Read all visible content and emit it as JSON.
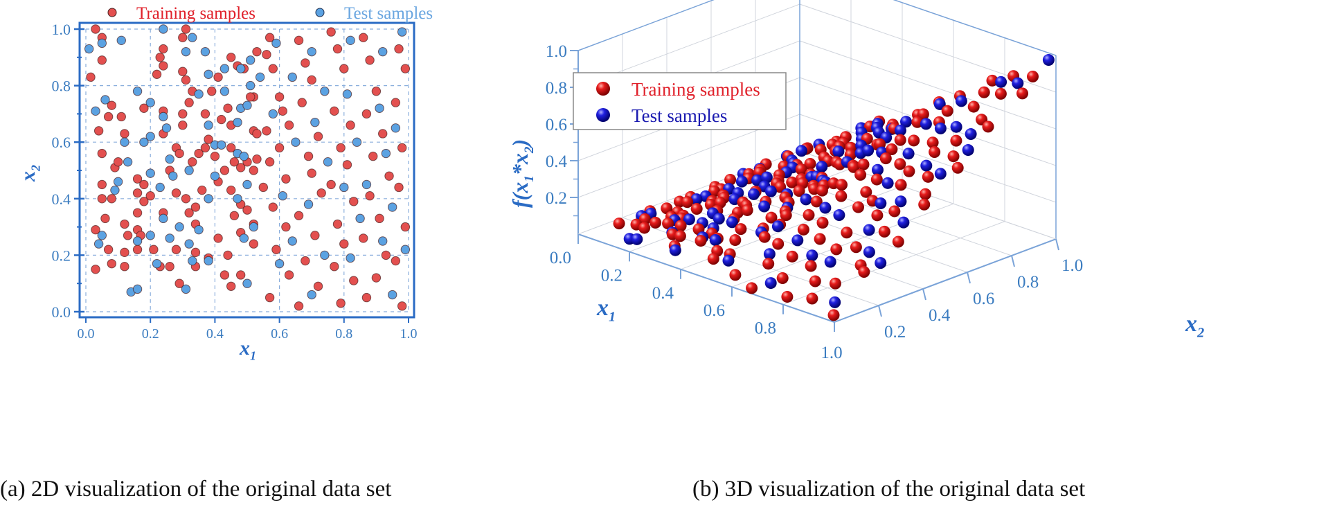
{
  "colors": {
    "axis": "#2a6bc4",
    "tick_label": "#3b7cc0",
    "training": "#e3504f",
    "test_2d": "#5ba2e2",
    "test_3d": "#1a1ad0",
    "training_text": "#e0202a",
    "test_text_2d": "#6aa6e0",
    "test_text_3d": "#1a1ab0",
    "grid": "#8aaedc"
  },
  "captions": {
    "a": "(a) 2D visualization of the original data set",
    "b": "(b) 3D visualization of the original data set"
  },
  "chart_data": [
    {
      "type": "scatter",
      "panel": "2D",
      "xlabel": "x1",
      "ylabel": "x2",
      "xlim": [
        0,
        1
      ],
      "ylim": [
        0,
        1
      ],
      "xticks": [
        "0.0",
        "0.2",
        "0.4",
        "0.6",
        "0.8",
        "1.0"
      ],
      "yticks": [
        "0.0",
        "0.2",
        "0.4",
        "0.6",
        "0.8",
        "1.0"
      ],
      "grid": true,
      "legend_position": "top-outside",
      "series": [
        {
          "name": "Training samples",
          "points": [
            [
              0.03,
              1.0
            ],
            [
              0.05,
              0.97
            ],
            [
              0.05,
              0.89
            ],
            [
              0.015,
              0.83
            ],
            [
              0.08,
              0.73
            ],
            [
              0.07,
              0.69
            ],
            [
              0.11,
              0.69
            ],
            [
              0.04,
              0.64
            ],
            [
              0.12,
              0.63
            ],
            [
              0.05,
              0.56
            ],
            [
              0.09,
              0.51
            ],
            [
              0.1,
              0.53
            ],
            [
              0.05,
              0.45
            ],
            [
              0.05,
              0.4
            ],
            [
              0.08,
              0.4
            ],
            [
              0.06,
              0.33
            ],
            [
              0.12,
              0.31
            ],
            [
              0.03,
              0.29
            ],
            [
              0.13,
              0.27
            ],
            [
              0.07,
              0.22
            ],
            [
              0.12,
              0.21
            ],
            [
              0.08,
              0.17
            ],
            [
              0.12,
              0.16
            ],
            [
              0.03,
              0.15
            ],
            [
              0.23,
              0.9
            ],
            [
              0.24,
              0.93
            ],
            [
              0.24,
              0.87
            ],
            [
              0.22,
              0.84
            ],
            [
              0.18,
              0.72
            ],
            [
              0.24,
              0.71
            ],
            [
              0.24,
              0.63
            ],
            [
              0.16,
              0.47
            ],
            [
              0.18,
              0.45
            ],
            [
              0.16,
              0.42
            ],
            [
              0.2,
              0.41
            ],
            [
              0.18,
              0.39
            ],
            [
              0.16,
              0.35
            ],
            [
              0.16,
              0.29
            ],
            [
              0.17,
              0.27
            ],
            [
              0.16,
              0.22
            ],
            [
              0.21,
              0.22
            ],
            [
              0.23,
              0.16
            ],
            [
              0.3,
              0.97
            ],
            [
              0.31,
              1.0
            ],
            [
              0.3,
              0.85
            ],
            [
              0.31,
              0.82
            ],
            [
              0.33,
              0.78
            ],
            [
              0.3,
              0.7
            ],
            [
              0.3,
              0.66
            ],
            [
              0.32,
              0.74
            ],
            [
              0.28,
              0.58
            ],
            [
              0.29,
              0.56
            ],
            [
              0.26,
              0.5
            ],
            [
              0.33,
              0.53
            ],
            [
              0.35,
              0.56
            ],
            [
              0.37,
              0.58
            ],
            [
              0.38,
              0.61
            ],
            [
              0.37,
              0.7
            ],
            [
              0.39,
              0.78
            ],
            [
              0.28,
              0.42
            ],
            [
              0.31,
              0.4
            ],
            [
              0.24,
              0.35
            ],
            [
              0.32,
              0.35
            ],
            [
              0.34,
              0.37
            ],
            [
              0.36,
              0.43
            ],
            [
              0.34,
              0.31
            ],
            [
              0.28,
              0.22
            ],
            [
              0.34,
              0.21
            ],
            [
              0.34,
              0.16
            ],
            [
              0.26,
              0.16
            ],
            [
              0.38,
              0.19
            ],
            [
              0.4,
              0.55
            ],
            [
              0.41,
              0.46
            ],
            [
              0.43,
              0.5
            ],
            [
              0.41,
              0.83
            ],
            [
              0.45,
              0.9
            ],
            [
              0.42,
              0.68
            ],
            [
              0.44,
              0.72
            ],
            [
              0.45,
              0.66
            ],
            [
              0.45,
              0.58
            ],
            [
              0.46,
              0.53
            ],
            [
              0.48,
              0.51
            ],
            [
              0.46,
              0.34
            ],
            [
              0.45,
              0.43
            ],
            [
              0.48,
              0.38
            ],
            [
              0.5,
              0.36
            ],
            [
              0.48,
              0.28
            ],
            [
              0.52,
              0.24
            ],
            [
              0.52,
              0.31
            ],
            [
              0.52,
              0.76
            ],
            [
              0.51,
              0.76
            ],
            [
              0.53,
              0.92
            ],
            [
              0.49,
              0.86
            ],
            [
              0.47,
              0.87
            ],
            [
              0.52,
              0.64
            ],
            [
              0.53,
              0.63
            ],
            [
              0.5,
              0.53
            ],
            [
              0.53,
              0.54
            ],
            [
              0.52,
              0.5
            ],
            [
              0.41,
              0.26
            ],
            [
              0.44,
              0.2
            ],
            [
              0.43,
              0.13
            ],
            [
              0.48,
              0.13
            ],
            [
              0.45,
              0.09
            ],
            [
              0.29,
              0.1
            ],
            [
              0.57,
              0.97
            ],
            [
              0.56,
              0.91
            ],
            [
              0.58,
              0.86
            ],
            [
              0.6,
              0.76
            ],
            [
              0.61,
              0.71
            ],
            [
              0.63,
              0.66
            ],
            [
              0.56,
              0.64
            ],
            [
              0.6,
              0.58
            ],
            [
              0.57,
              0.53
            ],
            [
              0.62,
              0.47
            ],
            [
              0.55,
              0.44
            ],
            [
              0.58,
              0.37
            ],
            [
              0.62,
              0.3
            ],
            [
              0.59,
              0.22
            ],
            [
              0.63,
              0.13
            ],
            [
              0.57,
              0.05
            ],
            [
              0.66,
              0.96
            ],
            [
              0.68,
              0.88
            ],
            [
              0.7,
              0.82
            ],
            [
              0.67,
              0.74
            ],
            [
              0.72,
              0.62
            ],
            [
              0.69,
              0.55
            ],
            [
              0.7,
              0.49
            ],
            [
              0.73,
              0.42
            ],
            [
              0.66,
              0.34
            ],
            [
              0.71,
              0.27
            ],
            [
              0.68,
              0.18
            ],
            [
              0.72,
              0.09
            ],
            [
              0.66,
              0.02
            ],
            [
              0.76,
              0.99
            ],
            [
              0.78,
              0.93
            ],
            [
              0.8,
              0.86
            ],
            [
              0.77,
              0.71
            ],
            [
              0.82,
              0.66
            ],
            [
              0.79,
              0.58
            ],
            [
              0.81,
              0.52
            ],
            [
              0.76,
              0.45
            ],
            [
              0.83,
              0.39
            ],
            [
              0.78,
              0.31
            ],
            [
              0.8,
              0.24
            ],
            [
              0.77,
              0.16
            ],
            [
              0.83,
              0.11
            ],
            [
              0.79,
              0.03
            ],
            [
              0.86,
              0.97
            ],
            [
              0.88,
              0.89
            ],
            [
              0.9,
              0.78
            ],
            [
              0.87,
              0.7
            ],
            [
              0.92,
              0.63
            ],
            [
              0.89,
              0.55
            ],
            [
              0.94,
              0.48
            ],
            [
              0.88,
              0.41
            ],
            [
              0.91,
              0.33
            ],
            [
              0.86,
              0.26
            ],
            [
              0.93,
              0.2
            ],
            [
              0.9,
              0.12
            ],
            [
              0.87,
              0.05
            ],
            [
              0.97,
              0.93
            ],
            [
              0.99,
              0.86
            ],
            [
              0.96,
              0.74
            ],
            [
              0.98,
              0.58
            ],
            [
              0.97,
              0.44
            ],
            [
              0.99,
              0.3
            ],
            [
              0.96,
              0.18
            ],
            [
              0.98,
              0.02
            ]
          ]
        },
        {
          "name": "Test samples",
          "points": [
            [
              0.01,
              0.93
            ],
            [
              0.05,
              0.95
            ],
            [
              0.11,
              0.96
            ],
            [
              0.03,
              0.71
            ],
            [
              0.06,
              0.75
            ],
            [
              0.16,
              0.78
            ],
            [
              0.2,
              0.74
            ],
            [
              0.24,
              0.69
            ],
            [
              0.25,
              0.65
            ],
            [
              0.18,
              0.6
            ],
            [
              0.2,
              0.62
            ],
            [
              0.12,
              0.6
            ],
            [
              0.13,
              0.53
            ],
            [
              0.1,
              0.46
            ],
            [
              0.09,
              0.43
            ],
            [
              0.2,
              0.49
            ],
            [
              0.23,
              0.44
            ],
            [
              0.27,
              0.48
            ],
            [
              0.26,
              0.54
            ],
            [
              0.31,
              0.92
            ],
            [
              0.33,
              0.97
            ],
            [
              0.24,
              1.0
            ],
            [
              0.37,
              0.92
            ],
            [
              0.35,
              0.77
            ],
            [
              0.38,
              0.84
            ],
            [
              0.38,
              0.66
            ],
            [
              0.32,
              0.5
            ],
            [
              0.4,
              0.48
            ],
            [
              0.38,
              0.4
            ],
            [
              0.4,
              0.59
            ],
            [
              0.42,
              0.59
            ],
            [
              0.43,
              0.86
            ],
            [
              0.43,
              0.78
            ],
            [
              0.48,
              0.86
            ],
            [
              0.47,
              0.67
            ],
            [
              0.48,
              0.72
            ],
            [
              0.5,
              0.73
            ],
            [
              0.51,
              0.8
            ],
            [
              0.51,
              0.89
            ],
            [
              0.54,
              0.83
            ],
            [
              0.47,
              0.56
            ],
            [
              0.49,
              0.55
            ],
            [
              0.5,
              0.45
            ],
            [
              0.47,
              0.4
            ],
            [
              0.52,
              0.3
            ],
            [
              0.49,
              0.26
            ],
            [
              0.5,
              0.1
            ],
            [
              0.2,
              0.27
            ],
            [
              0.16,
              0.25
            ],
            [
              0.04,
              0.24
            ],
            [
              0.05,
              0.27
            ],
            [
              0.24,
              0.33
            ],
            [
              0.29,
              0.3
            ],
            [
              0.35,
              0.29
            ],
            [
              0.32,
              0.24
            ],
            [
              0.26,
              0.26
            ],
            [
              0.22,
              0.17
            ],
            [
              0.33,
              0.18
            ],
            [
              0.38,
              0.18
            ],
            [
              0.14,
              0.07
            ],
            [
              0.16,
              0.08
            ],
            [
              0.31,
              0.08
            ],
            [
              0.59,
              0.95
            ],
            [
              0.64,
              0.83
            ],
            [
              0.58,
              0.7
            ],
            [
              0.65,
              0.6
            ],
            [
              0.61,
              0.41
            ],
            [
              0.64,
              0.25
            ],
            [
              0.6,
              0.17
            ],
            [
              0.7,
              0.92
            ],
            [
              0.74,
              0.78
            ],
            [
              0.71,
              0.67
            ],
            [
              0.75,
              0.53
            ],
            [
              0.69,
              0.38
            ],
            [
              0.74,
              0.2
            ],
            [
              0.7,
              0.06
            ],
            [
              0.82,
              0.96
            ],
            [
              0.81,
              0.77
            ],
            [
              0.84,
              0.6
            ],
            [
              0.8,
              0.44
            ],
            [
              0.85,
              0.33
            ],
            [
              0.82,
              0.19
            ],
            [
              0.92,
              0.92
            ],
            [
              0.91,
              0.72
            ],
            [
              0.93,
              0.56
            ],
            [
              0.87,
              0.45
            ],
            [
              0.95,
              0.37
            ],
            [
              0.92,
              0.25
            ],
            [
              0.95,
              0.06
            ],
            [
              0.98,
              0.99
            ],
            [
              0.96,
              0.65
            ],
            [
              0.99,
              0.22
            ]
          ]
        }
      ]
    },
    {
      "type": "scatter3d",
      "panel": "3D",
      "xlabel": "x1",
      "ylabel": "x2",
      "zlabel": "f(x1*x2)",
      "xlim": [
        0,
        1
      ],
      "ylim": [
        0,
        1
      ],
      "zlim": [
        0,
        1
      ],
      "xticks": [
        "0.0",
        "0.2",
        "0.4",
        "0.6",
        "0.8",
        "1.0"
      ],
      "yticks": [
        "0.2",
        "0.4",
        "0.6",
        "0.8",
        "1.0"
      ],
      "zticks": [
        "0.2",
        "0.4",
        "0.6",
        "0.8",
        "1.0"
      ],
      "z_function": "x1*x2",
      "grid": true,
      "legend_position": "upper-left",
      "series_source": "same (x1, x2) points as the 2D panel, z = x1*x2",
      "series": [
        {
          "name": "Training samples"
        },
        {
          "name": "Test samples"
        }
      ]
    }
  ]
}
